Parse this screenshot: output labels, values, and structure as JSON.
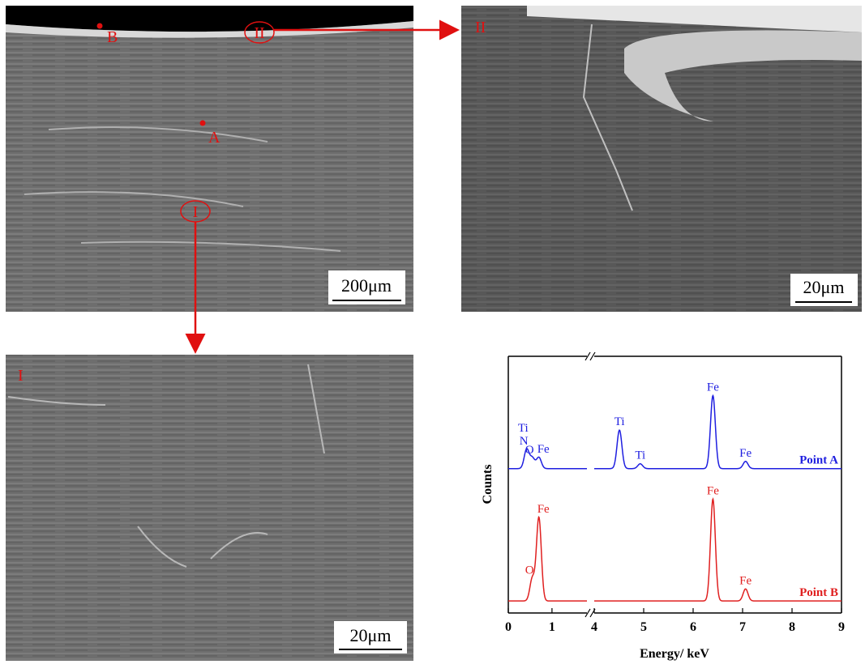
{
  "panels": [
    {
      "markers": [
        "B",
        "A"
      ],
      "regions": [
        "II",
        "I"
      ],
      "scale_bar": "200μm"
    },
    {
      "label": "II",
      "scale_bar": "20μm"
    },
    {
      "label": "I",
      "scale_bar": "20μm"
    }
  ],
  "chart_data": {
    "type": "line",
    "ylabel": "Counts",
    "xlabel": "Energy/ keV",
    "segments": [
      {
        "xlim": [
          0,
          1.8
        ],
        "xticks": [
          0,
          1
        ]
      },
      {
        "xlim": [
          4,
          9
        ],
        "xticks": [
          4,
          5,
          6,
          7,
          8,
          9
        ]
      }
    ],
    "ylim": [
      0,
      320
    ],
    "series": [
      {
        "name": "Point A",
        "color": "#1f1fe0",
        "baseline": 180,
        "peaks": [
          {
            "x": 0.42,
            "height": 24,
            "labels": [
              "Ti",
              "N"
            ]
          },
          {
            "x": 0.55,
            "height": 13,
            "labels": [
              "O"
            ]
          },
          {
            "x": 0.7,
            "height": 14,
            "labels": [
              "Fe"
            ]
          },
          {
            "x": 4.51,
            "height": 48,
            "labels": [
              "Ti"
            ]
          },
          {
            "x": 4.93,
            "height": 6,
            "labels": [
              "Ti"
            ]
          },
          {
            "x": 6.4,
            "height": 91,
            "labels": [
              "Fe"
            ]
          },
          {
            "x": 7.06,
            "height": 9,
            "labels": [
              "Fe"
            ]
          }
        ]
      },
      {
        "name": "Point B",
        "color": "#e02020",
        "baseline": 15,
        "peaks": [
          {
            "x": 0.55,
            "height": 28,
            "labels": [
              "O"
            ]
          },
          {
            "x": 0.7,
            "height": 104,
            "labels": [
              "Fe"
            ]
          },
          {
            "x": 6.4,
            "height": 127,
            "labels": [
              "Fe"
            ]
          },
          {
            "x": 7.06,
            "height": 15,
            "labels": [
              "Fe"
            ]
          }
        ]
      }
    ]
  }
}
